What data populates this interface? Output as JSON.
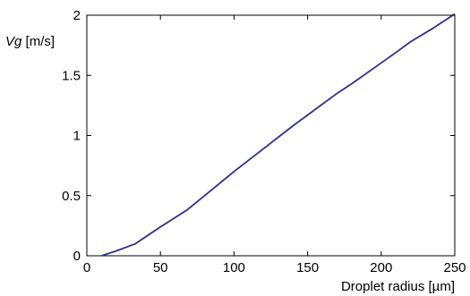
{
  "chart_data": {
    "type": "line",
    "title": "",
    "xlabel": "Droplet radius [µm]",
    "ylabel": {
      "symbol": "Vg",
      "unit": " [m/s]"
    },
    "xlim": [
      0,
      250
    ],
    "ylim": [
      0,
      2
    ],
    "xticks": [
      0,
      50,
      100,
      150,
      200,
      250
    ],
    "yticks": [
      0,
      0.5,
      1,
      1.5,
      2
    ],
    "xtick_labels": [
      "0",
      "50",
      "100",
      "150",
      "200",
      "250"
    ],
    "ytick_labels": [
      "0",
      "0.5",
      "1",
      "1.5",
      "2"
    ],
    "grid": false,
    "legend": "none",
    "series": [
      {
        "color": "#2e2e8f",
        "x": [
          10,
          20,
          33,
          50,
          68,
          85,
          100,
          120,
          140,
          160,
          170,
          180,
          195,
          210,
          220,
          235,
          250
        ],
        "y": [
          0.0,
          0.04,
          0.1,
          0.24,
          0.38,
          0.55,
          0.7,
          0.89,
          1.08,
          1.26,
          1.35,
          1.43,
          1.56,
          1.69,
          1.78,
          1.89,
          2.01
        ]
      }
    ]
  }
}
